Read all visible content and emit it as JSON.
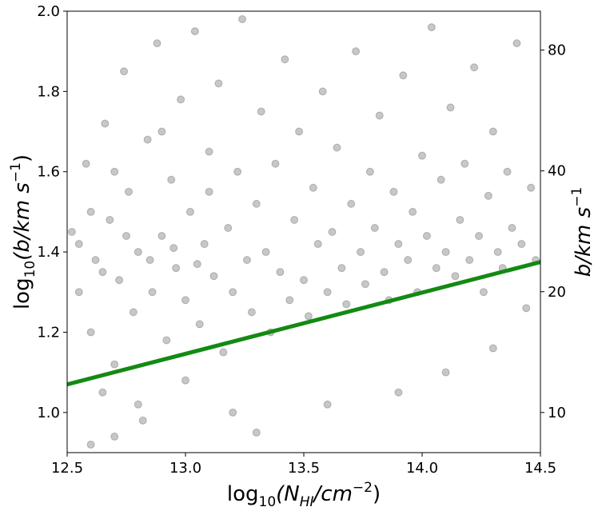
{
  "chart_data": {
    "type": "scatter",
    "x_label": [
      "log",
      "10",
      "(N",
      "HI",
      "/cm",
      "−2",
      ")"
    ],
    "y_label": [
      "log",
      "10",
      "(b/km s",
      "−1",
      ")"
    ],
    "y2_label": [
      "b/km s",
      "−1"
    ],
    "xlim": [
      12.5,
      14.5
    ],
    "ylim": [
      0.9,
      2.0
    ],
    "y2lim": [
      7.943,
      100
    ],
    "y2_log": true,
    "xticks": [
      {
        "value": 12.5,
        "label": "12.5"
      },
      {
        "value": 13,
        "label": "13.0"
      },
      {
        "value": 13.5,
        "label": "13.5"
      },
      {
        "value": 14,
        "label": "14.0"
      },
      {
        "value": 14.5,
        "label": "14.5"
      }
    ],
    "yticks": [
      {
        "value": 1,
        "label": "1.0"
      },
      1.2,
      1.4,
      1.6,
      1.8,
      {
        "value": 2,
        "label": "2.0"
      }
    ],
    "y2ticks": [
      10,
      20,
      40,
      80
    ],
    "series": [
      {
        "color": "#000000",
        "opacity": 0.22,
        "x": [
          12.52,
          12.55,
          12.58,
          12.6,
          12.62,
          12.65,
          12.66,
          12.68,
          12.7,
          12.72,
          12.74,
          12.76,
          12.78,
          12.8,
          12.82,
          12.84,
          12.86,
          12.88,
          12.9,
          12.92,
          12.94,
          12.96,
          12.98,
          13.0,
          13.02,
          13.04,
          13.06,
          13.08,
          13.1,
          13.12,
          13.14,
          13.16,
          13.18,
          13.2,
          13.22,
          13.24,
          13.26,
          13.28,
          13.3,
          13.32,
          13.34,
          13.36,
          13.38,
          13.4,
          13.42,
          13.44,
          13.46,
          13.48,
          13.5,
          13.52,
          13.54,
          13.56,
          13.58,
          13.6,
          13.62,
          13.64,
          13.66,
          13.68,
          13.7,
          13.72,
          13.74,
          13.76,
          13.78,
          13.8,
          13.82,
          13.84,
          13.86,
          13.88,
          13.9,
          13.92,
          13.94,
          13.96,
          13.98,
          14.0,
          14.02,
          14.04,
          14.06,
          14.08,
          14.1,
          14.12,
          14.14,
          14.16,
          14.18,
          14.2,
          14.22,
          14.24,
          14.26,
          14.28,
          14.3,
          14.32,
          14.34,
          14.36,
          14.38,
          14.4,
          14.42,
          14.44,
          14.46,
          14.48,
          12.6,
          12.8,
          13.0,
          13.3,
          13.6,
          13.9,
          14.1,
          14.3,
          12.7,
          13.2,
          12.55,
          12.65,
          12.75,
          12.85,
          12.95,
          13.05,
          12.6,
          12.7,
          12.9,
          13.1
        ],
        "values": [
          1.45,
          1.3,
          1.62,
          1.2,
          1.38,
          1.05,
          1.72,
          1.48,
          1.12,
          1.33,
          1.85,
          1.55,
          1.25,
          1.4,
          0.98,
          1.68,
          1.3,
          1.92,
          1.44,
          1.18,
          1.58,
          1.36,
          1.78,
          1.28,
          1.5,
          1.95,
          1.22,
          1.42,
          1.65,
          1.34,
          1.82,
          1.15,
          1.46,
          1.3,
          1.6,
          1.98,
          1.38,
          1.25,
          1.52,
          1.75,
          1.4,
          1.2,
          1.62,
          1.35,
          1.88,
          1.28,
          1.48,
          1.7,
          1.33,
          1.24,
          1.56,
          1.42,
          1.8,
          1.3,
          1.45,
          1.66,
          1.36,
          1.27,
          1.52,
          1.9,
          1.4,
          1.32,
          1.6,
          1.46,
          1.74,
          1.35,
          1.28,
          1.55,
          1.42,
          1.84,
          1.38,
          1.5,
          1.3,
          1.64,
          1.44,
          1.96,
          1.36,
          1.58,
          1.4,
          1.76,
          1.34,
          1.48,
          1.62,
          1.38,
          1.86,
          1.44,
          1.3,
          1.54,
          1.7,
          1.4,
          1.36,
          1.6,
          1.46,
          1.92,
          1.42,
          1.26,
          1.56,
          1.38,
          0.92,
          1.02,
          1.08,
          0.95,
          1.02,
          1.05,
          1.1,
          1.16,
          0.94,
          1.0,
          1.42,
          1.35,
          1.44,
          1.38,
          1.41,
          1.37,
          1.5,
          1.6,
          1.7,
          1.55
        ]
      },
      {
        "type": "line",
        "color": "#138a12",
        "x": [
          12.5,
          14.5
        ],
        "values": [
          1.07,
          1.375
        ]
      }
    ]
  }
}
